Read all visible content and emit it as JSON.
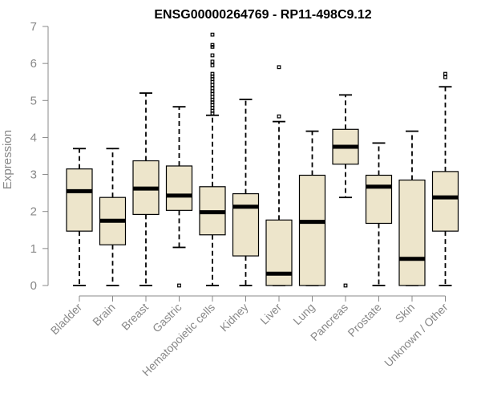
{
  "chart_data": {
    "type": "boxplot",
    "title": "ENSG00000264769 - RP11-498C9.12",
    "xlabel": "",
    "ylabel": "Expression",
    "ylim": [
      0,
      7
    ],
    "yticks": [
      0,
      1,
      2,
      3,
      4,
      5,
      6,
      7
    ],
    "box_color": "#ede5cb",
    "categories": [
      "Bladder",
      "Brain",
      "Breast",
      "Gastric",
      "Hematopoietic cells",
      "Kidney",
      "Liver",
      "Lung",
      "Pancreas",
      "Prostate",
      "Skin",
      "Unknown / Other"
    ],
    "boxes": [
      {
        "min": 0.0,
        "q1": 1.47,
        "median": 2.55,
        "q3": 3.15,
        "max": 3.7,
        "outliers": []
      },
      {
        "min": 0.0,
        "q1": 1.1,
        "median": 1.75,
        "q3": 2.38,
        "max": 3.7,
        "outliers": []
      },
      {
        "min": 0.0,
        "q1": 1.92,
        "median": 2.62,
        "q3": 3.37,
        "max": 5.2,
        "outliers": []
      },
      {
        "min": 1.03,
        "q1": 2.03,
        "median": 2.43,
        "q3": 3.23,
        "max": 4.83,
        "outliers": [
          0.0
        ]
      },
      {
        "min": 0.0,
        "q1": 1.37,
        "median": 1.98,
        "q3": 2.67,
        "max": 4.6,
        "outliers": [
          4.65,
          4.72,
          4.8,
          4.88,
          4.95,
          5.02,
          5.1,
          5.18,
          5.25,
          5.33,
          5.42,
          5.5,
          5.58,
          5.65,
          5.72,
          5.95,
          6.05,
          6.22,
          6.45,
          6.5,
          6.78
        ]
      },
      {
        "min": 0.0,
        "q1": 0.8,
        "median": 2.13,
        "q3": 2.48,
        "max": 5.03,
        "outliers": []
      },
      {
        "min": 0.0,
        "q1": 0.0,
        "median": 0.32,
        "q3": 1.77,
        "max": 4.43,
        "outliers": [
          4.57,
          5.9
        ]
      },
      {
        "min": 0.0,
        "q1": 0.0,
        "median": 1.72,
        "q3": 2.98,
        "max": 4.17,
        "outliers": []
      },
      {
        "min": 2.38,
        "q1": 3.28,
        "median": 3.75,
        "q3": 4.22,
        "max": 5.15,
        "outliers": [
          0.0
        ]
      },
      {
        "min": 0.0,
        "q1": 1.68,
        "median": 2.67,
        "q3": 2.98,
        "max": 3.85,
        "outliers": []
      },
      {
        "min": 0.0,
        "q1": 0.0,
        "median": 0.72,
        "q3": 2.85,
        "max": 4.17,
        "outliers": []
      },
      {
        "min": 0.0,
        "q1": 1.47,
        "median": 2.38,
        "q3": 3.08,
        "max": 5.37,
        "outliers": [
          5.63,
          5.72
        ]
      }
    ]
  }
}
